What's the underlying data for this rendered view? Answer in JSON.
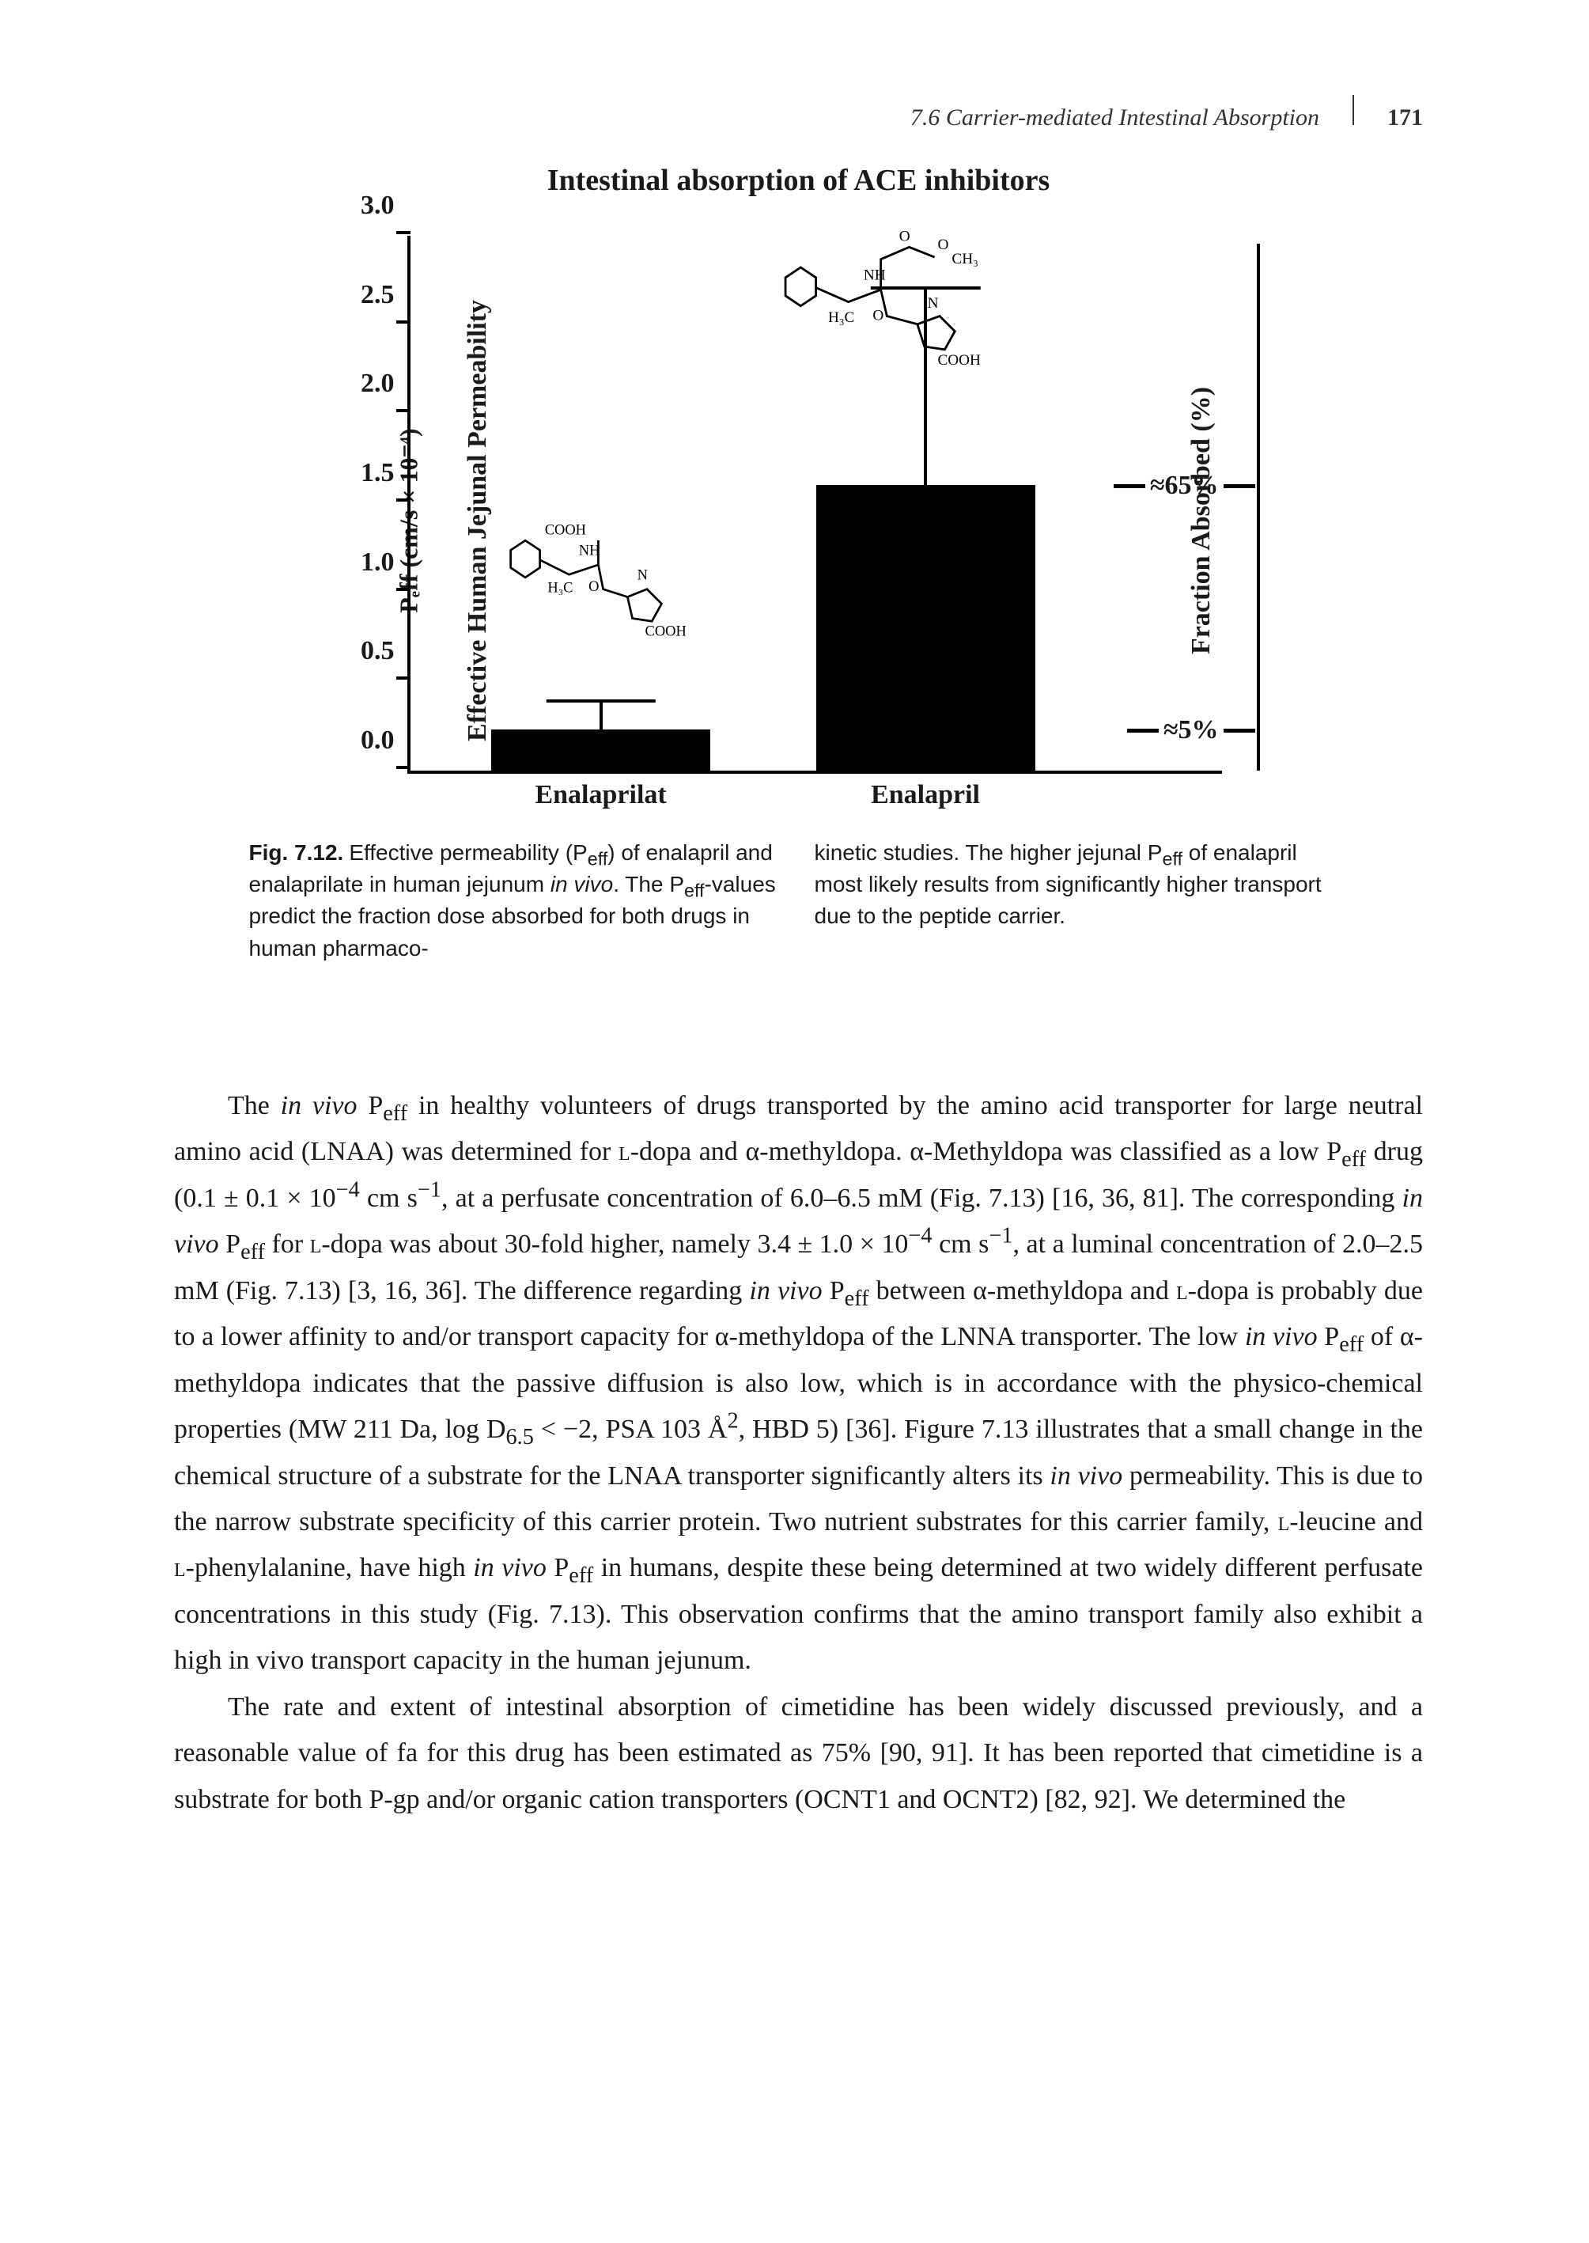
{
  "header": {
    "section": "7.6 Carrier-mediated Intestinal Absorption",
    "page_number": "171"
  },
  "figure": {
    "title": "Intestinal absorption of ACE inhibitors",
    "chart": {
      "type": "bar",
      "y_axis_title_outer": "Effective Human Jejunal Permeability",
      "y_axis_title_inner": "Pₑff (cm/s × 10⁻⁴)",
      "right_axis_title": "Fraction Absorbed (%)",
      "ylim": [
        0.0,
        3.0
      ],
      "ytick_step": 0.5,
      "yticks": [
        {
          "v": 0.0,
          "label": "0.0"
        },
        {
          "v": 0.5,
          "label": "0.5"
        },
        {
          "v": 1.0,
          "label": "1.0"
        },
        {
          "v": 1.5,
          "label": "1.5"
        },
        {
          "v": 2.0,
          "label": "2.0"
        },
        {
          "v": 2.5,
          "label": "2.5"
        },
        {
          "v": 3.0,
          "label": "3.0"
        }
      ],
      "bars": [
        {
          "category": "Enalaprilat",
          "value": 0.23,
          "err_top": 0.38,
          "width_pct": 27,
          "left_pct": 10
        },
        {
          "category": "Enalapril",
          "value": 1.6,
          "err_top": 2.7,
          "width_pct": 27,
          "left_pct": 50
        }
      ],
      "right_annotations": [
        {
          "align_v": 0.23,
          "label": "≈5%"
        },
        {
          "align_v": 1.6,
          "label": "≈65%"
        }
      ],
      "bar_color": "#000000",
      "background_color": "#ffffff"
    },
    "caption_left": "<b class=\"sans\">Fig. 7.12.</b> <span class=\"sans\">Effective permeability (P<sub>eff</sub>) of enalapril and enalaprilate in human jejunum <i>in vivo</i>. The P<sub>eff</sub>-values predict the fraction dose absorbed for both drugs in human pharmaco-</span>",
    "caption_right": "<span class=\"sans\">kinetic studies. The higher jejunal P<sub>eff</sub> of enalapril most likely results from significantly higher transport due to the peptide carrier.</span>"
  },
  "body": {
    "para1": "The <i>in vivo</i> P<sub>eff</sub> in healthy volunteers of drugs transported by the amino acid transporter for large neutral amino acid (LNAA) was determined for <span class=\"small-caps\">l</span>-dopa and α-methyldopa. α-Methyldopa was classified as a low P<sub>eff</sub> drug (0.1 ± 0.1 × 10<sup>−4</sup> cm s<sup>−1</sup>, at a perfusate concentration of 6.0–6.5 mM (Fig. 7.13) [16, 36, 81]. The corresponding <i>in vivo</i> P<sub>eff</sub> for <span class=\"small-caps\">l</span>-dopa was about 30-fold higher, namely 3.4 ± 1.0 × 10<sup>−4</sup> cm s<sup>−1</sup>, at a luminal concentration of 2.0–2.5 mM (Fig. 7.13) [3, 16, 36]. The difference regarding <i>in vivo</i> P<sub>eff</sub>  between α-methyldopa and <span class=\"small-caps\">l</span>-dopa is probably due to a lower affinity to and/or transport capacity for α-methyldopa of the LNNA transporter. The low <i>in vivo</i> P<sub>eff</sub> of α-methyldopa indicates that the passive diffusion is also low, which is in accordance with the physico-chemical properties (MW 211 Da, log D<sub>6.5</sub> &lt; −2, PSA 103 Å<sup>2</sup>, HBD 5) [36]. Figure 7.13 illustrates that a small change in the chemical structure of a substrate for the LNAA transporter significantly alters its <i>in vivo</i> permeability. This is due to the narrow substrate specificity of this carrier protein. Two nutrient substrates for this carrier family, <span class=\"small-caps\">l</span>-leucine and <span class=\"small-caps\">l</span>-phenylalanine, have high <i>in vivo</i> P<sub>eff</sub> in humans, despite these being determined at two widely different perfusate concentrations in this study (Fig. 7.13). This observation confirms that the amino transport family also exhibit a high in vivo transport capacity in the human jejunum.",
    "para2": "The rate and extent of intestinal absorption of cimetidine has been widely discussed previously, and a reasonable value of fa for this drug has been estimated as 75% [90, 91]. It has been reported that cimetidine is a substrate for both P-gp and/or organic cation transporters (OCNT1 and OCNT2) [82, 92]. We determined the"
  }
}
